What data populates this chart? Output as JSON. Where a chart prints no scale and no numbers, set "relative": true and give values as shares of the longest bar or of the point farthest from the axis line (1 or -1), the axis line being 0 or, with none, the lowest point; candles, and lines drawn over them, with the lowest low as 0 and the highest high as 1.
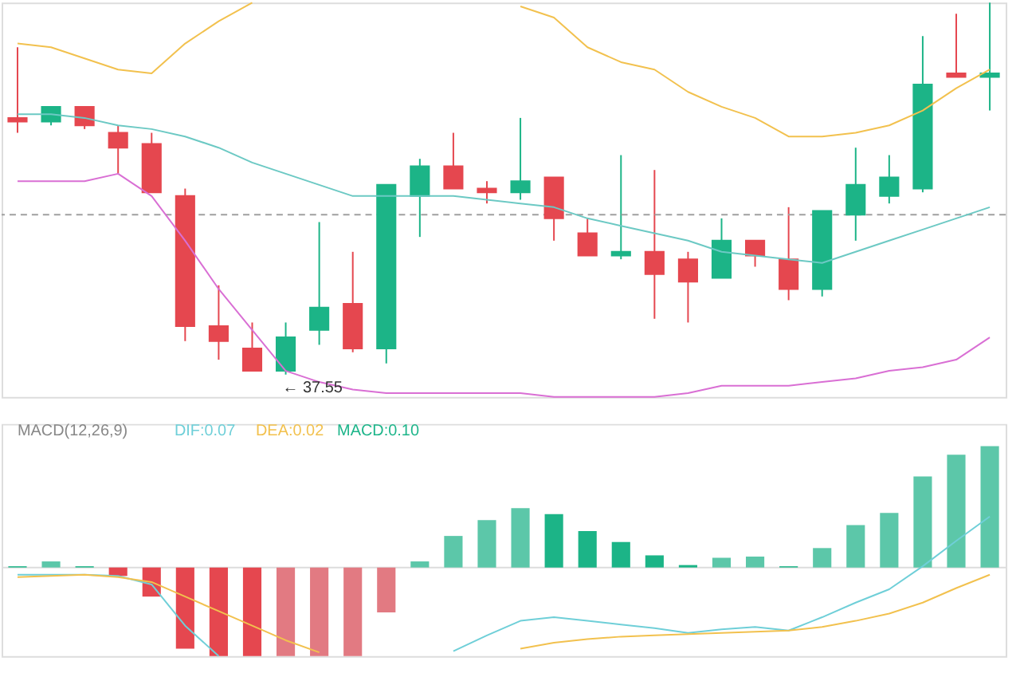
{
  "chart_data": [
    {
      "type": "candlestick",
      "relative": true,
      "categories": [
        null,
        null,
        null,
        null,
        null,
        null,
        null,
        null,
        null,
        null,
        null,
        null,
        null,
        null,
        null,
        null,
        null,
        null,
        null,
        null,
        null,
        null,
        null,
        null,
        null,
        null,
        null,
        null,
        null,
        null
      ],
      "ohlc": [
        [
          0.69,
          0.88,
          0.65,
          0.68
        ],
        [
          0.68,
          0.72,
          0.67,
          0.72
        ],
        [
          0.72,
          0.72,
          0.66,
          0.67
        ],
        [
          0.65,
          0.67,
          0.54,
          0.61
        ],
        [
          0.62,
          0.65,
          0.49,
          0.49
        ],
        [
          0.48,
          0.5,
          0.09,
          0.13
        ],
        [
          0.13,
          0.24,
          0.04,
          0.09
        ],
        [
          0.07,
          0.14,
          0.01,
          0.01
        ],
        [
          0.01,
          0.14,
          0,
          0.1
        ],
        [
          0.12,
          0.41,
          0.08,
          0.18
        ],
        [
          0.19,
          0.33,
          0.06,
          0.07
        ],
        [
          0.07,
          0.51,
          0.03,
          0.51
        ],
        [
          0.48,
          0.58,
          0.37,
          0.56
        ],
        [
          0.56,
          0.65,
          0.5,
          0.5
        ],
        [
          0.5,
          0.52,
          0.46,
          0.49
        ],
        [
          0.49,
          0.69,
          0.47,
          0.52
        ],
        [
          0.53,
          0.53,
          0.36,
          0.42
        ],
        [
          0.38,
          0.42,
          0.32,
          0.32
        ],
        [
          0.32,
          0.59,
          0.31,
          0.33
        ],
        [
          0.33,
          0.55,
          0.15,
          0.27
        ],
        [
          0.31,
          0.33,
          0.14,
          0.25
        ],
        [
          0.26,
          0.42,
          0.26,
          0.36
        ],
        [
          0.36,
          0.36,
          0.29,
          0.32
        ],
        [
          0.31,
          0.45,
          0.2,
          0.23
        ],
        [
          0.23,
          0.44,
          0.21,
          0.44
        ],
        [
          0.43,
          0.61,
          0.36,
          0.51
        ],
        [
          0.48,
          0.59,
          0.46,
          0.53
        ],
        [
          0.5,
          0.91,
          0.49,
          0.78
        ],
        [
          0.81,
          0.97,
          0.8,
          0.8
        ],
        [
          0.8,
          1,
          0.71,
          0.81
        ]
      ],
      "colors": [
        "#e5474f",
        "#1cb487",
        "#e5474f",
        "#e5474f",
        "#e5474f",
        "#e5474f",
        "#e5474f",
        "#e5474f",
        "#1cb487",
        "#1cb487",
        "#e5474f",
        "#1cb487",
        "#1cb487",
        "#e5474f",
        "#e5474f",
        "#1cb487",
        "#e5474f",
        "#e5474f",
        "#1cb487",
        "#e5474f",
        "#e5474f",
        "#1cb487",
        "#e5474f",
        "#e5474f",
        "#1cb487",
        "#1cb487",
        "#1cb487",
        "#1cb487",
        "#e5474f",
        "#1cb487"
      ],
      "series": [
        {
          "type": "line",
          "color": "#f2c14e",
          "values": [
            0.89,
            0.88,
            0.85,
            0.82,
            0.81,
            0.89,
            0.95,
            1.0,
            null,
            null,
            null,
            null,
            null,
            null,
            null,
            0.99,
            0.96,
            0.88,
            0.84,
            0.82,
            0.76,
            0.72,
            0.69,
            0.64,
            0.64,
            0.65,
            0.67,
            0.71,
            0.77,
            0.82
          ]
        },
        {
          "type": "line",
          "color": "#6cc9c4",
          "values": [
            0.7,
            0.7,
            0.69,
            0.67,
            0.66,
            0.64,
            0.61,
            0.57,
            0.54,
            0.51,
            0.48,
            0.48,
            0.48,
            0.48,
            0.47,
            0.46,
            0.45,
            0.42,
            0.4,
            0.38,
            0.36,
            0.33,
            0.32,
            0.31,
            0.3,
            0.33,
            0.36,
            0.39,
            0.42,
            0.45
          ]
        },
        {
          "type": "line",
          "color": "#d96fd4",
          "values": [
            0.52,
            0.52,
            0.52,
            0.54,
            0.48,
            0.36,
            0.23,
            0.12,
            0.01,
            -0.02,
            -0.04,
            -0.05,
            -0.05,
            -0.05,
            -0.05,
            -0.05,
            -0.06,
            -0.06,
            -0.06,
            -0.06,
            -0.05,
            -0.03,
            -0.03,
            -0.03,
            -0.02,
            -0.01,
            0.01,
            0.02,
            0.04,
            0.1
          ]
        }
      ],
      "ref_lines": [
        {
          "axis": "y",
          "value": 0.43,
          "color": "#a0a0a0",
          "line_style": "dashed"
        }
      ],
      "annotations": [
        "← 37.55"
      ]
    },
    {
      "type": "line",
      "relative": true,
      "title": "MACD(12,26,9)",
      "categories": [
        null,
        null,
        null,
        null,
        null,
        null,
        null,
        null,
        null,
        null,
        null,
        null,
        null,
        null,
        null,
        null,
        null,
        null,
        null,
        null,
        null,
        null,
        null,
        null,
        null,
        null,
        null,
        null,
        null,
        null
      ],
      "series": [
        {
          "name": "DIF:0.07",
          "type": "line",
          "color": "#6fcfd8",
          "values": [
            -0.06,
            -0.06,
            -0.06,
            -0.07,
            -0.14,
            -0.48,
            -0.73,
            null,
            null,
            null,
            null,
            null,
            null,
            -0.69,
            -0.56,
            -0.44,
            -0.41,
            -0.44,
            -0.47,
            -0.5,
            -0.54,
            -0.51,
            -0.49,
            -0.52,
            -0.41,
            -0.29,
            -0.18,
            0.01,
            0.22,
            0.42
          ]
        },
        {
          "name": "DEA:0.02",
          "type": "line",
          "color": "#f2c14e",
          "values": [
            -0.08,
            -0.07,
            -0.06,
            -0.08,
            -0.12,
            -0.24,
            -0.36,
            -0.48,
            -0.6,
            -0.7,
            null,
            null,
            null,
            null,
            null,
            -0.67,
            -0.62,
            -0.59,
            -0.57,
            -0.56,
            -0.55,
            -0.54,
            -0.53,
            -0.52,
            -0.49,
            -0.44,
            -0.38,
            -0.29,
            -0.17,
            -0.06
          ]
        },
        {
          "name": "MACD:0.10",
          "type": "bar",
          "color": "#1db58a",
          "values": [
            0.01,
            0.05,
            0.01,
            -0.07,
            -0.24,
            -0.67,
            -0.73,
            -0.73,
            -0.73,
            -0.73,
            -0.73,
            -0.37,
            0.05,
            0.26,
            0.39,
            0.49,
            0.44,
            0.3,
            0.21,
            0.1,
            0.02,
            0.08,
            0.09,
            0.01,
            0.16,
            0.35,
            0.45,
            0.75,
            0.93,
            1
          ],
          "colors": [
            "#1cb487",
            "#5cc7a9",
            "#1cb487",
            "#e5474f",
            "#e5474f",
            "#e5474f",
            "#e5474f",
            "#e5474f",
            "#e27a82",
            "#e27a82",
            "#e27a82",
            "#e27a82",
            "#5cc7a9",
            "#5cc7a9",
            "#5cc7a9",
            "#5cc7a9",
            "#1cb487",
            "#1cb487",
            "#1cb487",
            "#1cb487",
            "#1cb487",
            "#5cc7a9",
            "#5cc7a9",
            "#1cb487",
            "#5cc7a9",
            "#5cc7a9",
            "#5cc7a9",
            "#5cc7a9",
            "#5cc7a9",
            "#5cc7a9"
          ]
        }
      ]
    }
  ]
}
